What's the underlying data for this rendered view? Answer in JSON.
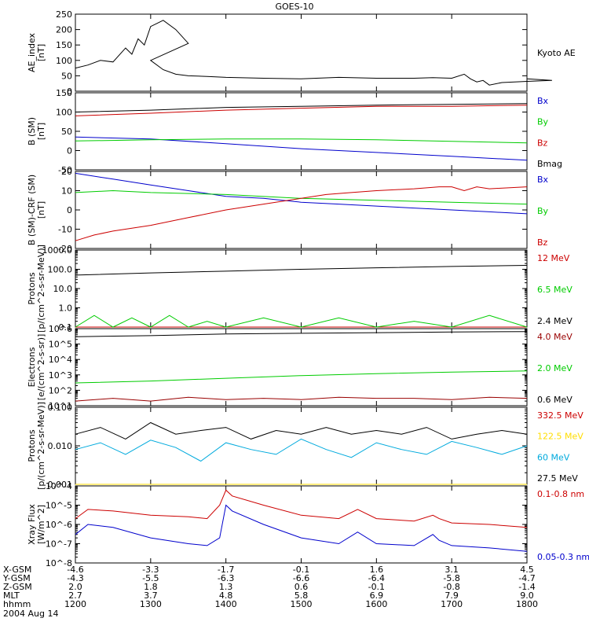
{
  "title": "GOES-10",
  "date_label": "2004 Aug 14",
  "colors": {
    "black": "#000000",
    "red": "#cc0000",
    "green": "#00cc00",
    "blue": "#0000cc",
    "cyan": "#00aadd",
    "yellow": "#ffdd00",
    "darkred": "#990000"
  },
  "chart_data": [
    {
      "type": "line",
      "ylabel": "AE_index\n[nT]",
      "ylim": [
        0,
        250
      ],
      "yticks": [
        "0",
        "50",
        "100",
        "150",
        "200",
        "250"
      ],
      "series": [
        {
          "name": "Kyoto AE",
          "color": "black",
          "x": [
            1200,
            1210,
            1220,
            1230,
            1240,
            1245,
            1250,
            1255,
            1260,
            1265,
            1270,
            1280,
            1290,
            1300,
            1310,
            1320,
            1330,
            1345,
            1400,
            1430,
            1500,
            1530,
            1600,
            1630,
            1645,
            1700,
            1710,
            1715,
            1720,
            1725,
            1730,
            1740,
            1750,
            1760,
            1780,
            1800
          ],
          "y": [
            75,
            85,
            100,
            95,
            140,
            120,
            170,
            150,
            210,
            220,
            230,
            200,
            155,
            100,
            70,
            55,
            50,
            48,
            45,
            42,
            40,
            45,
            42,
            42,
            44,
            42,
            55,
            40,
            30,
            35,
            20,
            28,
            30,
            32,
            35,
            40
          ]
        }
      ]
    },
    {
      "type": "line",
      "ylabel": "B (SM)\n[nT]",
      "ylim": [
        -50,
        150
      ],
      "yticks": [
        "-50",
        "0",
        "50",
        "100",
        "150"
      ],
      "series": [
        {
          "name": "Bx",
          "color": "blue",
          "x": [
            1200,
            1300,
            1400,
            1500,
            1600,
            1700,
            1800
          ],
          "y": [
            35,
            30,
            18,
            5,
            -5,
            -15,
            -25
          ]
        },
        {
          "name": "By",
          "color": "green",
          "x": [
            1200,
            1300,
            1400,
            1500,
            1600,
            1700,
            1800
          ],
          "y": [
            25,
            28,
            30,
            30,
            28,
            24,
            20
          ]
        },
        {
          "name": "Bz",
          "color": "red",
          "x": [
            1200,
            1300,
            1400,
            1500,
            1600,
            1700,
            1800
          ],
          "y": [
            90,
            97,
            105,
            110,
            115,
            115,
            118
          ]
        },
        {
          "name": "Bmag",
          "color": "black",
          "x": [
            1200,
            1300,
            1400,
            1500,
            1600,
            1700,
            1800
          ],
          "y": [
            100,
            105,
            112,
            115,
            118,
            120,
            122
          ]
        }
      ]
    },
    {
      "type": "line",
      "ylabel": "B (SM)-CRF (SM)\n[nT]",
      "ylim": [
        -20,
        20
      ],
      "yticks": [
        "-20",
        "-10",
        "0",
        "10",
        "20"
      ],
      "series": [
        {
          "name": "Bx",
          "color": "blue",
          "x": [
            1200,
            1210,
            1230,
            1300,
            1330,
            1400,
            1430,
            1500,
            1530,
            1600,
            1630,
            1700,
            1730,
            1800
          ],
          "y": [
            19,
            18,
            16,
            13,
            10,
            7,
            6,
            4,
            3,
            2,
            1,
            0,
            -1,
            -2
          ]
        },
        {
          "name": "By",
          "color": "green",
          "x": [
            1200,
            1230,
            1300,
            1400,
            1500,
            1600,
            1700,
            1800
          ],
          "y": [
            9,
            10,
            9,
            8,
            6,
            5,
            4,
            3
          ]
        },
        {
          "name": "Bz",
          "color": "red",
          "x": [
            1200,
            1215,
            1230,
            1300,
            1330,
            1400,
            1430,
            1500,
            1520,
            1540,
            1600,
            1630,
            1650,
            1700,
            1710,
            1720,
            1730,
            1800
          ],
          "y": [
            -16,
            -13,
            -11,
            -8,
            -4,
            0,
            3,
            6,
            8,
            9,
            10,
            11,
            12,
            12,
            10,
            12,
            11,
            12
          ]
        }
      ]
    },
    {
      "type": "line",
      "ylabel": "Protons\n[p/(cm^2-s-sr-MeV)]",
      "yscale": "log",
      "ylim": [
        0.1,
        1000.0
      ],
      "yticks": [
        "0.1",
        "1.0",
        "10.0",
        "100.0",
        "1000.0"
      ],
      "series": [
        {
          "name": "12 MeV",
          "color": "red",
          "x": [
            1200,
            1800
          ],
          "y": [
            0.1,
            0.1
          ]
        },
        {
          "name": "6.5 MeV",
          "color": "green",
          "x": [
            1200,
            1215,
            1230,
            1245,
            1300,
            1315,
            1330,
            1345,
            1400,
            1430,
            1500,
            1530,
            1600,
            1630,
            1700,
            1730,
            1800
          ],
          "y": [
            0.1,
            0.4,
            0.1,
            0.3,
            0.1,
            0.4,
            0.1,
            0.2,
            0.1,
            0.3,
            0.1,
            0.3,
            0.1,
            0.2,
            0.1,
            0.4,
            0.1
          ]
        },
        {
          "name": "2.4 MeV",
          "color": "black",
          "x": [
            1200,
            1300,
            1400,
            1500,
            1600,
            1700,
            1800
          ],
          "y": [
            50,
            65,
            80,
            100,
            120,
            140,
            160
          ]
        }
      ]
    },
    {
      "type": "line",
      "ylabel": "Electrons\n[e/(cm^2-s-sr)]",
      "yscale": "log",
      "ylim": [
        10,
        1000000
      ],
      "yticks": [
        "10^1",
        "10^2",
        "10^3",
        "10^4",
        "10^5",
        "10^6"
      ],
      "series": [
        {
          "name": "4.0 MeV",
          "color": "darkred",
          "x": [
            1200,
            1230,
            1300,
            1330,
            1400,
            1430,
            1500,
            1530,
            1600,
            1630,
            1700,
            1730,
            1800
          ],
          "y": [
            20,
            30,
            20,
            35,
            25,
            30,
            25,
            35,
            30,
            30,
            25,
            35,
            30
          ]
        },
        {
          "name": "2.0 MeV",
          "color": "green",
          "x": [
            1200,
            1300,
            1400,
            1500,
            1600,
            1700,
            1800
          ],
          "y": [
            300,
            400,
            600,
            900,
            1200,
            1500,
            1800
          ]
        },
        {
          "name": "0.6 MeV",
          "color": "black",
          "x": [
            1200,
            1300,
            1400,
            1500,
            1600,
            1700,
            1800
          ],
          "y": [
            300000,
            350000,
            450000,
            500000,
            550000,
            600000,
            650000
          ]
        }
      ]
    },
    {
      "type": "line",
      "ylabel": "Protons\n[p/(cm^2-s-sr-MeV)]",
      "yscale": "log",
      "ylim": [
        0.001,
        0.1
      ],
      "yticks": [
        "0.001",
        "0.010",
        "0.100"
      ],
      "series": [
        {
          "name": "332.5 MeV",
          "color": "red",
          "x": [
            1200,
            1800
          ],
          "y": [
            0.001,
            0.001
          ]
        },
        {
          "name": "122.5 MeV",
          "color": "yellow",
          "x": [
            1200,
            1800
          ],
          "y": [
            0.001,
            0.001
          ]
        },
        {
          "name": "60 MeV",
          "color": "cyan",
          "x": [
            1200,
            1220,
            1240,
            1300,
            1320,
            1340,
            1400,
            1420,
            1440,
            1500,
            1520,
            1540,
            1600,
            1620,
            1640,
            1700,
            1720,
            1740,
            1800
          ],
          "y": [
            0.008,
            0.012,
            0.006,
            0.014,
            0.009,
            0.004,
            0.012,
            0.008,
            0.006,
            0.015,
            0.008,
            0.005,
            0.012,
            0.008,
            0.006,
            0.013,
            0.009,
            0.006,
            0.01
          ]
        },
        {
          "name": "27.5 MeV",
          "color": "black",
          "x": [
            1200,
            1220,
            1240,
            1300,
            1320,
            1340,
            1400,
            1420,
            1440,
            1500,
            1520,
            1540,
            1600,
            1620,
            1640,
            1700,
            1720,
            1740,
            1800
          ],
          "y": [
            0.02,
            0.03,
            0.015,
            0.04,
            0.02,
            0.025,
            0.03,
            0.015,
            0.025,
            0.02,
            0.03,
            0.02,
            0.025,
            0.02,
            0.03,
            0.015,
            0.02,
            0.025,
            0.02
          ]
        }
      ]
    },
    {
      "type": "line",
      "ylabel": "Xray Flux\n[W/m^2]",
      "yscale": "log",
      "ylim": [
        1e-08,
        0.0001
      ],
      "yticks": [
        "10^-8",
        "10^-7",
        "10^-6",
        "10^-5",
        "10^-4"
      ],
      "series": [
        {
          "name": "0.1-0.8 nm",
          "color": "red",
          "x": [
            1200,
            1210,
            1230,
            1300,
            1330,
            1345,
            1355,
            1400,
            1405,
            1430,
            1500,
            1530,
            1545,
            1600,
            1630,
            1645,
            1650,
            1700,
            1730,
            1800
          ],
          "y": [
            2e-06,
            6e-06,
            5e-06,
            3e-06,
            2.5e-06,
            2e-06,
            1e-05,
            6e-05,
            3e-05,
            1e-05,
            3e-06,
            2e-06,
            6e-06,
            2e-06,
            1.5e-06,
            3e-06,
            2e-06,
            1.2e-06,
            1e-06,
            7e-07
          ]
        },
        {
          "name": "0.05-0.3 nm",
          "color": "blue",
          "x": [
            1200,
            1210,
            1230,
            1300,
            1330,
            1345,
            1355,
            1400,
            1405,
            1430,
            1500,
            1530,
            1545,
            1600,
            1630,
            1645,
            1650,
            1700,
            1730,
            1800
          ],
          "y": [
            3e-07,
            1e-06,
            7e-07,
            2e-07,
            1e-07,
            8e-08,
            2e-07,
            1e-05,
            5e-06,
            1e-06,
            2e-07,
            1e-07,
            4e-07,
            1e-07,
            8e-08,
            3e-07,
            1.5e-07,
            8e-08,
            6e-08,
            4e-08
          ]
        }
      ]
    }
  ],
  "x_axis": {
    "ticks": [
      1200,
      1300,
      1400,
      1500,
      1600,
      1700,
      1800
    ],
    "rows": [
      {
        "label": "X-GSM",
        "values": [
          "-4.6",
          "-3.3",
          "-1.7",
          "-0.1",
          "1.6",
          "3.1",
          "4.5"
        ]
      },
      {
        "label": "Y-GSM",
        "values": [
          "-4.3",
          "-5.5",
          "-6.3",
          "-6.6",
          "-6.4",
          "-5.8",
          "-4.7"
        ]
      },
      {
        "label": "Z-GSM",
        "values": [
          "2.0",
          "1.8",
          "1.3",
          "0.6",
          "-0.1",
          "-0.8",
          "-1.4"
        ]
      },
      {
        "label": "MLT",
        "values": [
          "2.7",
          "3.7",
          "4.8",
          "5.8",
          "6.9",
          "7.9",
          "9.0"
        ]
      },
      {
        "label": "hhmm",
        "values": [
          "1200",
          "1300",
          "1400",
          "1500",
          "1600",
          "1700",
          "1800"
        ]
      }
    ]
  }
}
